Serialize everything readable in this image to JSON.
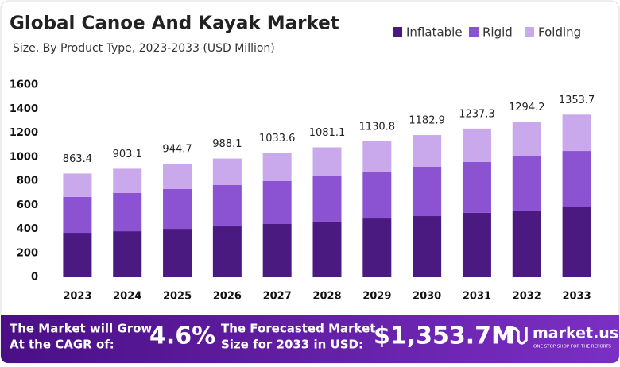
{
  "chart_data": {
    "type": "stacked_bar",
    "title": "Global Canoe And Kayak Market",
    "subtitle": "Size, By Product Type, 2023-2033 (USD Million)",
    "categories": [
      "2023",
      "2024",
      "2025",
      "2026",
      "2027",
      "2028",
      "2029",
      "2030",
      "2031",
      "2032",
      "2033"
    ],
    "series": [
      {
        "name": "Inflatable",
        "color": "#4b1a80",
        "values": [
          370,
          383,
          403,
          423,
          443,
          463,
          489,
          509,
          536,
          555,
          582
        ]
      },
      {
        "name": "Rigid",
        "color": "#8b52d2",
        "values": [
          298,
          318,
          331,
          344,
          357,
          377,
          390,
          410,
          423,
          450,
          469
        ]
      },
      {
        "name": "Folding",
        "color": "#caa8ec",
        "values": [
          195.4,
          202.1,
          210.7,
          221.1,
          233.6,
          241.1,
          251.8,
          263.9,
          278.3,
          289.2,
          302.7
        ]
      }
    ],
    "totals": [
      863.4,
      903.1,
      944.7,
      988.1,
      1033.6,
      1081.1,
      1130.8,
      1182.9,
      1237.3,
      1294.2,
      1353.7
    ],
    "ylim": [
      0,
      1600
    ],
    "yticks": [
      0,
      200,
      400,
      600,
      800,
      1000,
      1200,
      1400,
      1600
    ],
    "grid": false
  },
  "footer": {
    "cagr_text": [
      "The Market will Grow",
      "At the CAGR of:"
    ],
    "cagr_value": "4.6%",
    "forecast_text": [
      "The Forecasted Market",
      "Size for 2033 in USD:"
    ],
    "forecast_value": "$1,353.7M",
    "brand": "market.us",
    "brand_tagline": "ONE STOP SHOP FOR THE REPORTS"
  }
}
